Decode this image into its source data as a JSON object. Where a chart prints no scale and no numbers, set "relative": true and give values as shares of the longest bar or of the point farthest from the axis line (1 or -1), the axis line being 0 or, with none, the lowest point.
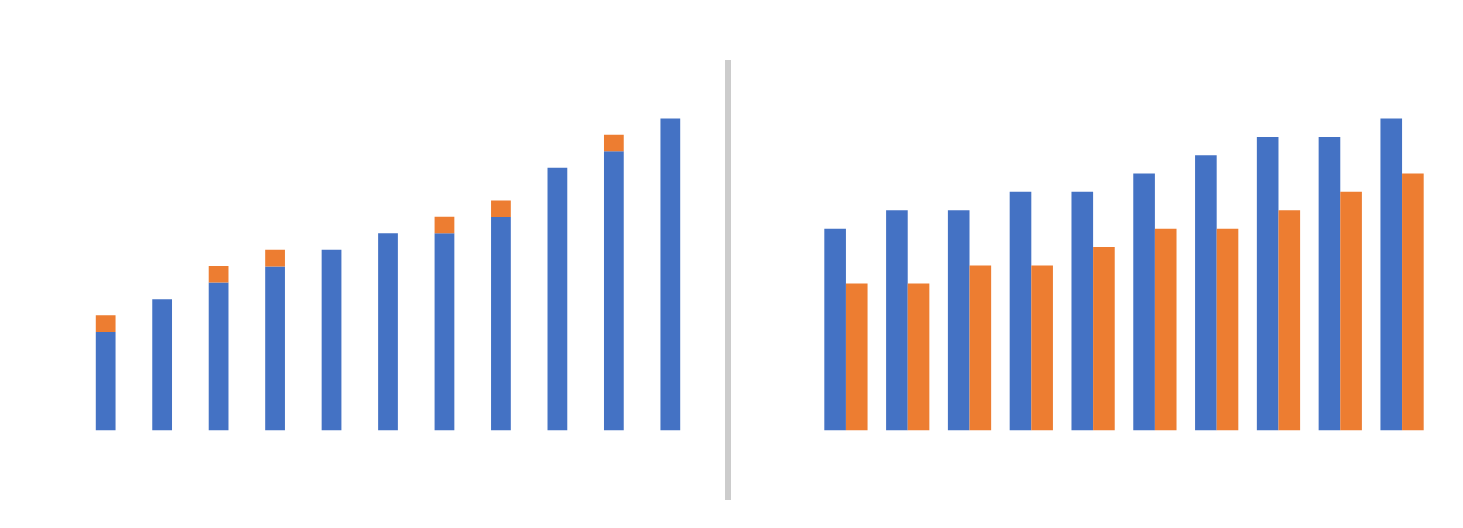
{
  "chart_data": [
    {
      "type": "bar",
      "relative": true,
      "stacked": true,
      "categories": [
        null,
        null,
        null,
        null,
        null,
        null,
        null,
        null,
        null,
        null,
        null
      ],
      "series": [
        {
          "color": "#4472c4",
          "values": [
            0.316,
            0.421,
            0.474,
            0.526,
            0.579,
            0.632,
            0.632,
            0.684,
            0.842,
            0.895,
            1
          ]
        },
        {
          "color": "#ed7d31",
          "values": [
            0.053,
            0,
            0.053,
            0.053,
            0,
            0,
            0.053,
            0.053,
            0,
            0.053,
            0
          ]
        }
      ]
    },
    {
      "type": "bar",
      "relative": true,
      "categories": [
        null,
        null,
        null,
        null,
        null,
        null,
        null,
        null,
        null,
        null
      ],
      "series": [
        {
          "color": "#4472c4",
          "values": [
            0.647,
            0.706,
            0.706,
            0.765,
            0.765,
            0.824,
            0.882,
            0.941,
            0.941,
            1
          ]
        },
        {
          "color": "#ed7d31",
          "values": [
            0.471,
            0.471,
            0.529,
            0.529,
            0.588,
            0.647,
            0.647,
            0.706,
            0.765,
            0.824
          ]
        }
      ]
    }
  ]
}
